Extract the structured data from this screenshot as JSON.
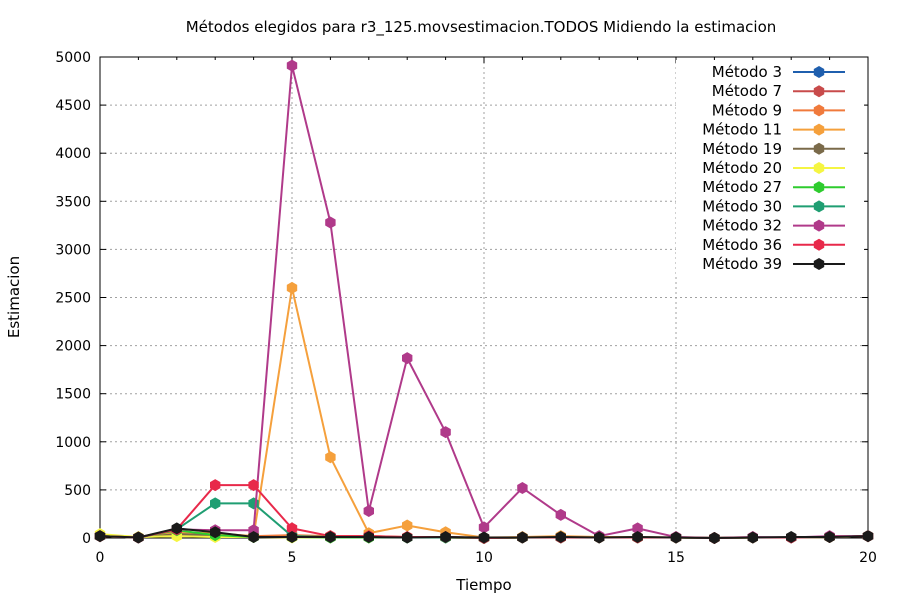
{
  "chart_data": {
    "type": "line",
    "title": "Métodos elegidos para r3_125.movsestimacion.TODOS Midiendo la estimacion",
    "xlabel": "Tiempo",
    "ylabel": "Estimacion",
    "xlim": [
      0,
      20
    ],
    "ylim": [
      0,
      5000
    ],
    "xticks": [
      0,
      5,
      10,
      15,
      20
    ],
    "yticks": [
      0,
      500,
      1000,
      1500,
      2000,
      2500,
      3000,
      3500,
      4000,
      4500,
      5000
    ],
    "grid": true,
    "legend_position": "top-right",
    "x": [
      0,
      1,
      2,
      3,
      4,
      5,
      6,
      7,
      8,
      9,
      10,
      11,
      12,
      13,
      14,
      15,
      16,
      17,
      18,
      19,
      20
    ],
    "series": [
      {
        "name": "Método 3",
        "color": "#1f5fae",
        "values": [
          20,
          5,
          30,
          20,
          10,
          10,
          5,
          5,
          5,
          5,
          0,
          5,
          5,
          5,
          5,
          5,
          0,
          5,
          5,
          10,
          20
        ]
      },
      {
        "name": "Método 7",
        "color": "#c84b4b",
        "values": [
          20,
          5,
          40,
          30,
          20,
          20,
          10,
          10,
          5,
          5,
          0,
          5,
          5,
          5,
          5,
          5,
          0,
          5,
          5,
          10,
          20
        ]
      },
      {
        "name": "Método 9",
        "color": "#f07a3c",
        "values": [
          20,
          5,
          50,
          40,
          20,
          30,
          20,
          20,
          10,
          10,
          0,
          5,
          5,
          5,
          5,
          5,
          0,
          5,
          5,
          10,
          20
        ]
      },
      {
        "name": "Método 11",
        "color": "#f5a03c",
        "values": [
          20,
          5,
          60,
          50,
          20,
          2600,
          840,
          50,
          130,
          60,
          5,
          10,
          20,
          10,
          10,
          5,
          0,
          5,
          5,
          10,
          20
        ]
      },
      {
        "name": "Método 19",
        "color": "#7a6a4a",
        "values": [
          20,
          5,
          40,
          30,
          10,
          10,
          5,
          5,
          5,
          5,
          0,
          5,
          5,
          5,
          5,
          5,
          0,
          5,
          5,
          10,
          20
        ]
      },
      {
        "name": "Método 20",
        "color": "#f5f542",
        "values": [
          40,
          10,
          20,
          10,
          10,
          5,
          5,
          5,
          5,
          5,
          0,
          5,
          5,
          5,
          5,
          5,
          0,
          5,
          5,
          10,
          20
        ]
      },
      {
        "name": "Método 27",
        "color": "#2ecc2e",
        "values": [
          20,
          5,
          80,
          30,
          10,
          10,
          5,
          5,
          5,
          5,
          0,
          5,
          5,
          5,
          5,
          5,
          0,
          5,
          5,
          10,
          20
        ]
      },
      {
        "name": "Método 30",
        "color": "#1f9e72",
        "values": [
          20,
          5,
          90,
          360,
          360,
          20,
          10,
          10,
          5,
          5,
          0,
          5,
          5,
          5,
          5,
          5,
          0,
          5,
          5,
          10,
          20
        ]
      },
      {
        "name": "Método 32",
        "color": "#b03a8a",
        "values": [
          20,
          5,
          90,
          80,
          80,
          4910,
          3280,
          280,
          1870,
          1100,
          110,
          520,
          240,
          20,
          100,
          10,
          0,
          10,
          5,
          20,
          20
        ]
      },
      {
        "name": "Método 36",
        "color": "#e8294a",
        "values": [
          20,
          5,
          90,
          550,
          550,
          100,
          20,
          20,
          10,
          10,
          0,
          5,
          5,
          5,
          5,
          5,
          0,
          5,
          5,
          10,
          20
        ]
      },
      {
        "name": "Método 39",
        "color": "#1a1a1a",
        "values": [
          20,
          5,
          100,
          60,
          10,
          10,
          10,
          10,
          5,
          10,
          5,
          5,
          10,
          5,
          10,
          5,
          0,
          5,
          10,
          10,
          20
        ]
      }
    ]
  }
}
